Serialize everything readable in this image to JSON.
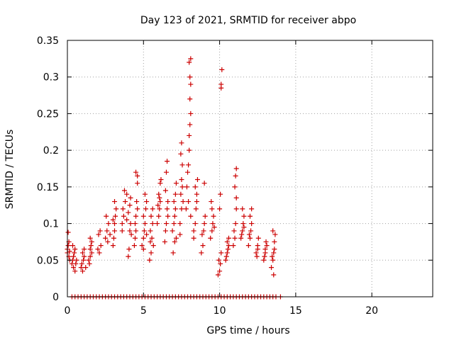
{
  "chart_data": {
    "type": "scatter",
    "title": "Day 123 of 2021, SRMTID for receiver abpo",
    "xlabel": "GPS time / hours",
    "ylabel": "SRMTID / TECUs",
    "xlim": [
      0,
      24
    ],
    "ylim": [
      0,
      0.35
    ],
    "xticks": [
      0,
      5,
      10,
      15,
      20
    ],
    "xtick_labels": [
      "0",
      "5",
      "10",
      "15",
      "20"
    ],
    "yticks": [
      0,
      0.05,
      0.1,
      0.15,
      0.2,
      0.25,
      0.3,
      0.35
    ],
    "ytick_labels": [
      "0",
      "0.05",
      "0.1",
      "0.15",
      "0.2",
      "0.25",
      "0.3",
      "0.35"
    ],
    "grid": true,
    "marker": "+",
    "color": "#cc0000",
    "series": [
      {
        "name": "SRMTID",
        "points": [
          [
            0.0,
            0.06
          ],
          [
            0.0,
            0.065
          ],
          [
            0.05,
            0.07
          ],
          [
            0.1,
            0.075
          ],
          [
            0.1,
            0.055
          ],
          [
            0.15,
            0.05
          ],
          [
            0.05,
            0.088
          ],
          [
            0.15,
            0.062
          ],
          [
            0.3,
            0.045
          ],
          [
            0.35,
            0.05
          ],
          [
            0.4,
            0.055
          ],
          [
            0.45,
            0.06
          ],
          [
            0.5,
            0.065
          ],
          [
            0.4,
            0.04
          ],
          [
            0.5,
            0.035
          ],
          [
            0.55,
            0.045
          ],
          [
            0.6,
            0.05
          ],
          [
            0.35,
            0.07
          ],
          [
            0.9,
            0.04
          ],
          [
            1.0,
            0.035
          ],
          [
            1.05,
            0.05
          ],
          [
            1.1,
            0.055
          ],
          [
            1.0,
            0.06
          ],
          [
            1.1,
            0.065
          ],
          [
            0.95,
            0.045
          ],
          [
            1.2,
            0.04
          ],
          [
            1.4,
            0.05
          ],
          [
            1.5,
            0.055
          ],
          [
            1.5,
            0.065
          ],
          [
            1.55,
            0.07
          ],
          [
            1.6,
            0.075
          ],
          [
            1.45,
            0.045
          ],
          [
            1.6,
            0.06
          ],
          [
            1.5,
            0.08
          ],
          [
            2.0,
            0.065
          ],
          [
            2.1,
            0.06
          ],
          [
            2.2,
            0.07
          ],
          [
            2.05,
            0.085
          ],
          [
            2.15,
            0.09
          ],
          [
            2.5,
            0.08
          ],
          [
            2.6,
            0.09
          ],
          [
            2.55,
            0.11
          ],
          [
            2.7,
            0.1
          ],
          [
            2.8,
            0.085
          ],
          [
            2.65,
            0.075
          ],
          [
            3.0,
            0.07
          ],
          [
            3.05,
            0.08
          ],
          [
            3.1,
            0.09
          ],
          [
            3.1,
            0.1
          ],
          [
            3.15,
            0.11
          ],
          [
            3.2,
            0.12
          ],
          [
            3.0,
            0.105
          ],
          [
            3.1,
            0.13
          ],
          [
            3.6,
            0.1
          ],
          [
            3.7,
            0.11
          ],
          [
            3.65,
            0.12
          ],
          [
            3.8,
            0.13
          ],
          [
            3.75,
            0.145
          ],
          [
            3.9,
            0.14
          ],
          [
            3.6,
            0.09
          ],
          [
            3.9,
            0.105
          ],
          [
            4.0,
            0.055
          ],
          [
            4.05,
            0.065
          ],
          [
            4.1,
            0.09
          ],
          [
            4.15,
            0.1
          ],
          [
            4.2,
            0.085
          ],
          [
            4.0,
            0.115
          ],
          [
            4.1,
            0.125
          ],
          [
            4.15,
            0.135
          ],
          [
            4.4,
            0.07
          ],
          [
            4.45,
            0.08
          ],
          [
            4.5,
            0.09
          ],
          [
            4.5,
            0.11
          ],
          [
            4.55,
            0.13
          ],
          [
            4.6,
            0.155
          ],
          [
            4.6,
            0.165
          ],
          [
            4.5,
            0.17
          ],
          [
            4.45,
            0.1
          ],
          [
            4.6,
            0.12
          ],
          [
            4.9,
            0.07
          ],
          [
            5.0,
            0.08
          ],
          [
            5.05,
            0.09
          ],
          [
            5.1,
            0.1
          ],
          [
            5.0,
            0.11
          ],
          [
            5.15,
            0.12
          ],
          [
            5.2,
            0.13
          ],
          [
            5.1,
            0.14
          ],
          [
            5.0,
            0.065
          ],
          [
            5.2,
            0.085
          ],
          [
            5.4,
            0.05
          ],
          [
            5.5,
            0.06
          ],
          [
            5.45,
            0.075
          ],
          [
            5.55,
            0.08
          ],
          [
            5.6,
            0.1
          ],
          [
            5.5,
            0.11
          ],
          [
            5.6,
            0.12
          ],
          [
            5.45,
            0.09
          ],
          [
            5.65,
            0.07
          ],
          [
            5.9,
            0.1
          ],
          [
            6.0,
            0.11
          ],
          [
            6.05,
            0.12
          ],
          [
            6.1,
            0.13
          ],
          [
            6.0,
            0.14
          ],
          [
            6.1,
            0.155
          ],
          [
            6.15,
            0.16
          ],
          [
            5.95,
            0.125
          ],
          [
            6.05,
            0.135
          ],
          [
            6.4,
            0.075
          ],
          [
            6.45,
            0.09
          ],
          [
            6.5,
            0.1
          ],
          [
            6.55,
            0.12
          ],
          [
            6.6,
            0.13
          ],
          [
            6.5,
            0.17
          ],
          [
            6.55,
            0.185
          ],
          [
            6.45,
            0.145
          ],
          [
            6.6,
            0.11
          ],
          [
            6.9,
            0.09
          ],
          [
            7.0,
            0.1
          ],
          [
            7.05,
            0.11
          ],
          [
            7.1,
            0.12
          ],
          [
            7.0,
            0.13
          ],
          [
            7.1,
            0.14
          ],
          [
            7.15,
            0.155
          ],
          [
            6.95,
            0.06
          ],
          [
            7.05,
            0.075
          ],
          [
            7.15,
            0.08
          ],
          [
            7.4,
            0.1
          ],
          [
            7.5,
            0.12
          ],
          [
            7.45,
            0.14
          ],
          [
            7.5,
            0.16
          ],
          [
            7.55,
            0.18
          ],
          [
            7.45,
            0.195
          ],
          [
            7.5,
            0.21
          ],
          [
            7.55,
            0.15
          ],
          [
            7.4,
            0.085
          ],
          [
            7.6,
            0.13
          ],
          [
            7.8,
            0.12
          ],
          [
            7.85,
            0.15
          ],
          [
            7.9,
            0.17
          ],
          [
            7.95,
            0.18
          ],
          [
            8.0,
            0.2
          ],
          [
            8.0,
            0.22
          ],
          [
            8.05,
            0.235
          ],
          [
            8.1,
            0.25
          ],
          [
            8.05,
            0.27
          ],
          [
            8.1,
            0.29
          ],
          [
            8.0,
            0.32
          ],
          [
            8.1,
            0.325
          ],
          [
            8.05,
            0.3
          ],
          [
            7.95,
            0.13
          ],
          [
            8.1,
            0.11
          ],
          [
            8.3,
            0.08
          ],
          [
            8.4,
            0.1
          ],
          [
            8.45,
            0.12
          ],
          [
            8.5,
            0.13
          ],
          [
            8.4,
            0.15
          ],
          [
            8.55,
            0.16
          ],
          [
            8.3,
            0.09
          ],
          [
            8.5,
            0.14
          ],
          [
            8.8,
            0.06
          ],
          [
            8.9,
            0.07
          ],
          [
            8.95,
            0.09
          ],
          [
            9.0,
            0.1
          ],
          [
            9.05,
            0.11
          ],
          [
            9.0,
            0.155
          ],
          [
            8.85,
            0.085
          ],
          [
            9.4,
            0.08
          ],
          [
            9.5,
            0.09
          ],
          [
            9.55,
            0.1
          ],
          [
            9.6,
            0.11
          ],
          [
            9.5,
            0.12
          ],
          [
            9.45,
            0.13
          ],
          [
            9.65,
            0.095
          ],
          [
            9.9,
            0.03
          ],
          [
            10.0,
            0.035
          ],
          [
            10.05,
            0.045
          ],
          [
            10.1,
            0.06
          ],
          [
            10.0,
            0.12
          ],
          [
            10.05,
            0.14
          ],
          [
            10.1,
            0.29
          ],
          [
            10.15,
            0.31
          ],
          [
            10.1,
            0.285
          ],
          [
            9.95,
            0.05
          ],
          [
            10.4,
            0.05
          ],
          [
            10.5,
            0.06
          ],
          [
            10.55,
            0.065
          ],
          [
            10.6,
            0.07
          ],
          [
            10.5,
            0.075
          ],
          [
            10.45,
            0.055
          ],
          [
            10.6,
            0.08
          ],
          [
            10.9,
            0.07
          ],
          [
            11.0,
            0.08
          ],
          [
            11.05,
            0.1
          ],
          [
            11.1,
            0.12
          ],
          [
            11.0,
            0.15
          ],
          [
            11.05,
            0.165
          ],
          [
            11.1,
            0.175
          ],
          [
            10.95,
            0.09
          ],
          [
            11.1,
            0.135
          ],
          [
            11.4,
            0.08
          ],
          [
            11.5,
            0.09
          ],
          [
            11.55,
            0.1
          ],
          [
            11.6,
            0.11
          ],
          [
            11.5,
            0.12
          ],
          [
            11.45,
            0.085
          ],
          [
            11.6,
            0.095
          ],
          [
            11.9,
            0.07
          ],
          [
            12.0,
            0.08
          ],
          [
            12.05,
            0.09
          ],
          [
            12.1,
            0.1
          ],
          [
            12.0,
            0.11
          ],
          [
            12.1,
            0.12
          ],
          [
            11.95,
            0.085
          ],
          [
            12.4,
            0.06
          ],
          [
            12.5,
            0.07
          ],
          [
            12.55,
            0.08
          ],
          [
            12.5,
            0.065
          ],
          [
            12.45,
            0.055
          ],
          [
            12.9,
            0.05
          ],
          [
            13.0,
            0.06
          ],
          [
            13.05,
            0.075
          ],
          [
            13.0,
            0.065
          ],
          [
            12.95,
            0.055
          ],
          [
            13.1,
            0.07
          ],
          [
            13.4,
            0.04
          ],
          [
            13.5,
            0.05
          ],
          [
            13.55,
            0.06
          ],
          [
            13.6,
            0.065
          ],
          [
            13.5,
            0.09
          ],
          [
            13.45,
            0.055
          ],
          [
            13.6,
            0.075
          ],
          [
            13.55,
            0.03
          ],
          [
            13.65,
            0.085
          ]
        ]
      }
    ],
    "zero_points_x": [
      0.3,
      0.5,
      0.7,
      0.9,
      1.1,
      1.3,
      1.5,
      1.7,
      1.9,
      2.1,
      2.3,
      2.5,
      2.7,
      2.9,
      3.1,
      3.3,
      3.5,
      3.7,
      3.9,
      4.1,
      4.3,
      4.5,
      4.7,
      4.9,
      5.1,
      5.3,
      5.5,
      5.7,
      5.9,
      6.1,
      6.3,
      6.5,
      6.7,
      6.9,
      7.1,
      7.3,
      7.5,
      7.7,
      7.9,
      8.1,
      8.3,
      8.5,
      8.7,
      8.9,
      9.1,
      9.3,
      9.5,
      9.7,
      9.9,
      10.1,
      10.3,
      10.5,
      10.7,
      10.9,
      11.1,
      11.3,
      11.5,
      11.7,
      11.9,
      12.1,
      12.3,
      12.5,
      12.7,
      12.9,
      13.1,
      13.3,
      13.5,
      13.7,
      14.0
    ]
  }
}
